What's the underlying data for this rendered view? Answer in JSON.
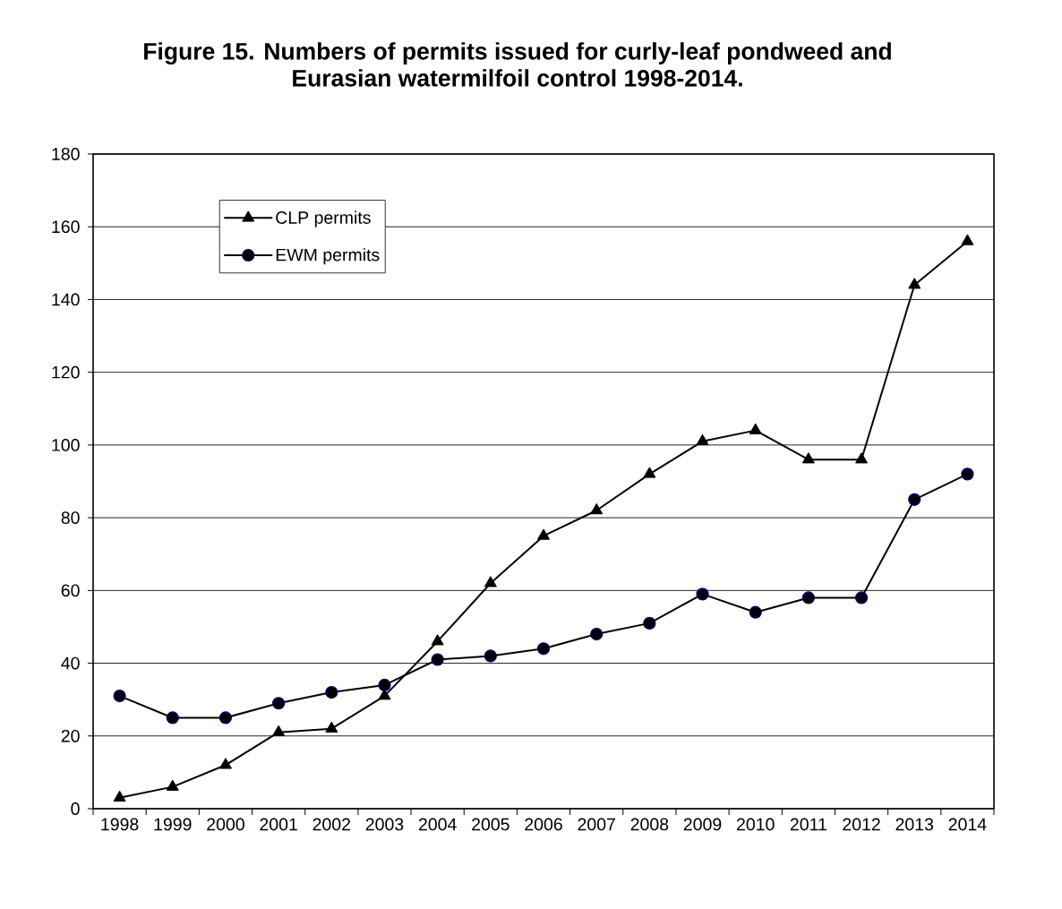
{
  "chart_data": {
    "type": "line",
    "title": "Figure 15.  Numbers of permits issued for curly-leaf pondweed and Eurasian watermilfoil control 1998-2014.",
    "categories": [
      "1998",
      "1999",
      "2000",
      "2001",
      "2002",
      "2003",
      "2004",
      "2005",
      "2006",
      "2007",
      "2008",
      "2009",
      "2010",
      "2011",
      "2012",
      "2013",
      "2014"
    ],
    "series": [
      {
        "name": "CLP permits",
        "color": "#000000",
        "marker": "triangle",
        "values": [
          3,
          6,
          12,
          21,
          22,
          31,
          46,
          62,
          75,
          82,
          92,
          101,
          104,
          96,
          96,
          144,
          156
        ]
      },
      {
        "name": "EWM permits",
        "color": "#000000",
        "marker": "circle",
        "values": [
          31,
          25,
          25,
          29,
          32,
          34,
          41,
          42,
          44,
          48,
          51,
          59,
          54,
          58,
          58,
          85,
          92
        ]
      }
    ],
    "ylim": [
      0,
      180
    ],
    "yticks": [
      0,
      20,
      40,
      60,
      80,
      100,
      120,
      140,
      160,
      180
    ],
    "grid": "y",
    "legend": "top left",
    "line_style": "solid"
  }
}
